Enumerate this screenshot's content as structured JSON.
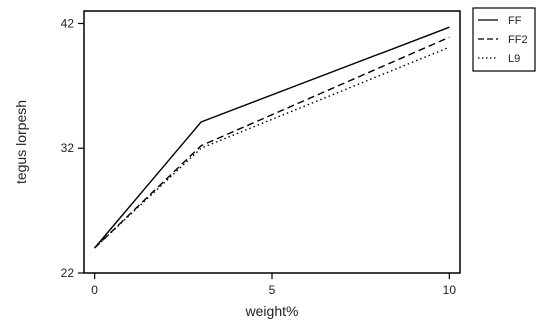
{
  "chart_data": {
    "type": "line",
    "title": "",
    "xlabel": "weight%",
    "ylabel": "tegus lorpesh",
    "x": [
      0,
      3,
      10
    ],
    "xticks": [
      0,
      5,
      10
    ],
    "xtick_labels": [
      "0",
      "5",
      "10"
    ],
    "yticks": [
      22,
      32,
      42
    ],
    "ytick_labels": [
      "22",
      "32",
      "42"
    ],
    "xlim": [
      -0.3,
      10.3
    ],
    "ylim": [
      22,
      43
    ],
    "series": [
      {
        "name": "FF",
        "values": [
          24,
          34.1,
          41.7
        ],
        "style": "solid"
      },
      {
        "name": "FF2",
        "values": [
          24,
          32.2,
          40.9
        ],
        "style": "dashed"
      },
      {
        "name": "L9",
        "values": [
          24,
          32.0,
          40.1
        ],
        "style": "dotted"
      }
    ],
    "legend": {
      "placement": "outside-top-right",
      "framed": true
    },
    "grid": false,
    "colors": {
      "line": "#000000"
    }
  }
}
